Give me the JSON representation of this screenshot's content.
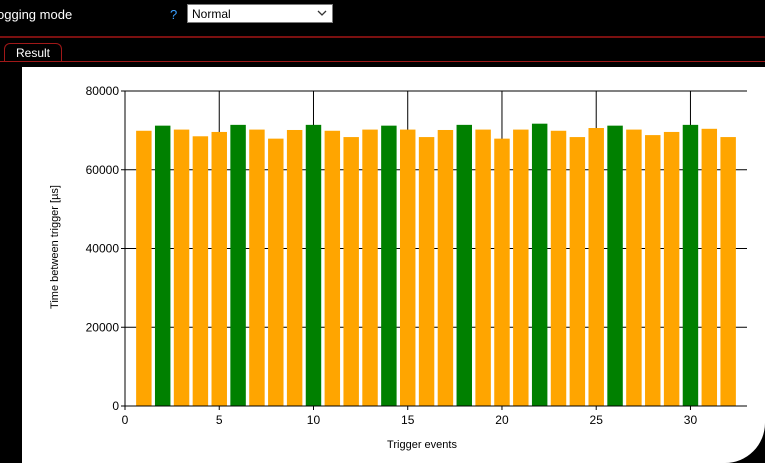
{
  "toolbar": {
    "logging_mode_label": "ogging mode",
    "help_glyph": "?",
    "logging_mode_value": "Normal"
  },
  "tabs": [
    {
      "label": "Result"
    }
  ],
  "chart_data": {
    "type": "bar",
    "xlabel": "Trigger events",
    "ylabel": "Time between trigger [µs]",
    "xlim": [
      0,
      33
    ],
    "ylim": [
      0,
      80000
    ],
    "xticks": [
      0,
      5,
      10,
      15,
      20,
      25,
      30
    ],
    "yticks": [
      0,
      20000,
      40000,
      60000,
      80000
    ],
    "grid": "vertical lines at x ticks from value to top, horizontal gridlines",
    "colors": {
      "orange": "#FFA500",
      "green": "#008000"
    },
    "bars": [
      {
        "x": 1,
        "value": 69900,
        "color": "orange"
      },
      {
        "x": 2,
        "value": 71200,
        "color": "green"
      },
      {
        "x": 3,
        "value": 70200,
        "color": "orange"
      },
      {
        "x": 4,
        "value": 68500,
        "color": "orange"
      },
      {
        "x": 5,
        "value": 69600,
        "color": "orange"
      },
      {
        "x": 6,
        "value": 71400,
        "color": "green"
      },
      {
        "x": 7,
        "value": 70200,
        "color": "orange"
      },
      {
        "x": 8,
        "value": 67900,
        "color": "orange"
      },
      {
        "x": 9,
        "value": 70100,
        "color": "orange"
      },
      {
        "x": 10,
        "value": 71400,
        "color": "green"
      },
      {
        "x": 11,
        "value": 69900,
        "color": "orange"
      },
      {
        "x": 12,
        "value": 68300,
        "color": "orange"
      },
      {
        "x": 13,
        "value": 70200,
        "color": "orange"
      },
      {
        "x": 14,
        "value": 71200,
        "color": "green"
      },
      {
        "x": 15,
        "value": 70200,
        "color": "orange"
      },
      {
        "x": 16,
        "value": 68300,
        "color": "orange"
      },
      {
        "x": 17,
        "value": 70100,
        "color": "orange"
      },
      {
        "x": 18,
        "value": 71400,
        "color": "green"
      },
      {
        "x": 19,
        "value": 70200,
        "color": "orange"
      },
      {
        "x": 20,
        "value": 67900,
        "color": "orange"
      },
      {
        "x": 21,
        "value": 70200,
        "color": "orange"
      },
      {
        "x": 22,
        "value": 71700,
        "color": "green"
      },
      {
        "x": 23,
        "value": 69900,
        "color": "orange"
      },
      {
        "x": 24,
        "value": 68300,
        "color": "orange"
      },
      {
        "x": 25,
        "value": 70600,
        "color": "orange"
      },
      {
        "x": 26,
        "value": 71200,
        "color": "green"
      },
      {
        "x": 27,
        "value": 70200,
        "color": "orange"
      },
      {
        "x": 28,
        "value": 68800,
        "color": "orange"
      },
      {
        "x": 29,
        "value": 69600,
        "color": "orange"
      },
      {
        "x": 30,
        "value": 71400,
        "color": "green"
      },
      {
        "x": 31,
        "value": 70400,
        "color": "orange"
      },
      {
        "x": 32,
        "value": 68300,
        "color": "orange"
      }
    ]
  }
}
